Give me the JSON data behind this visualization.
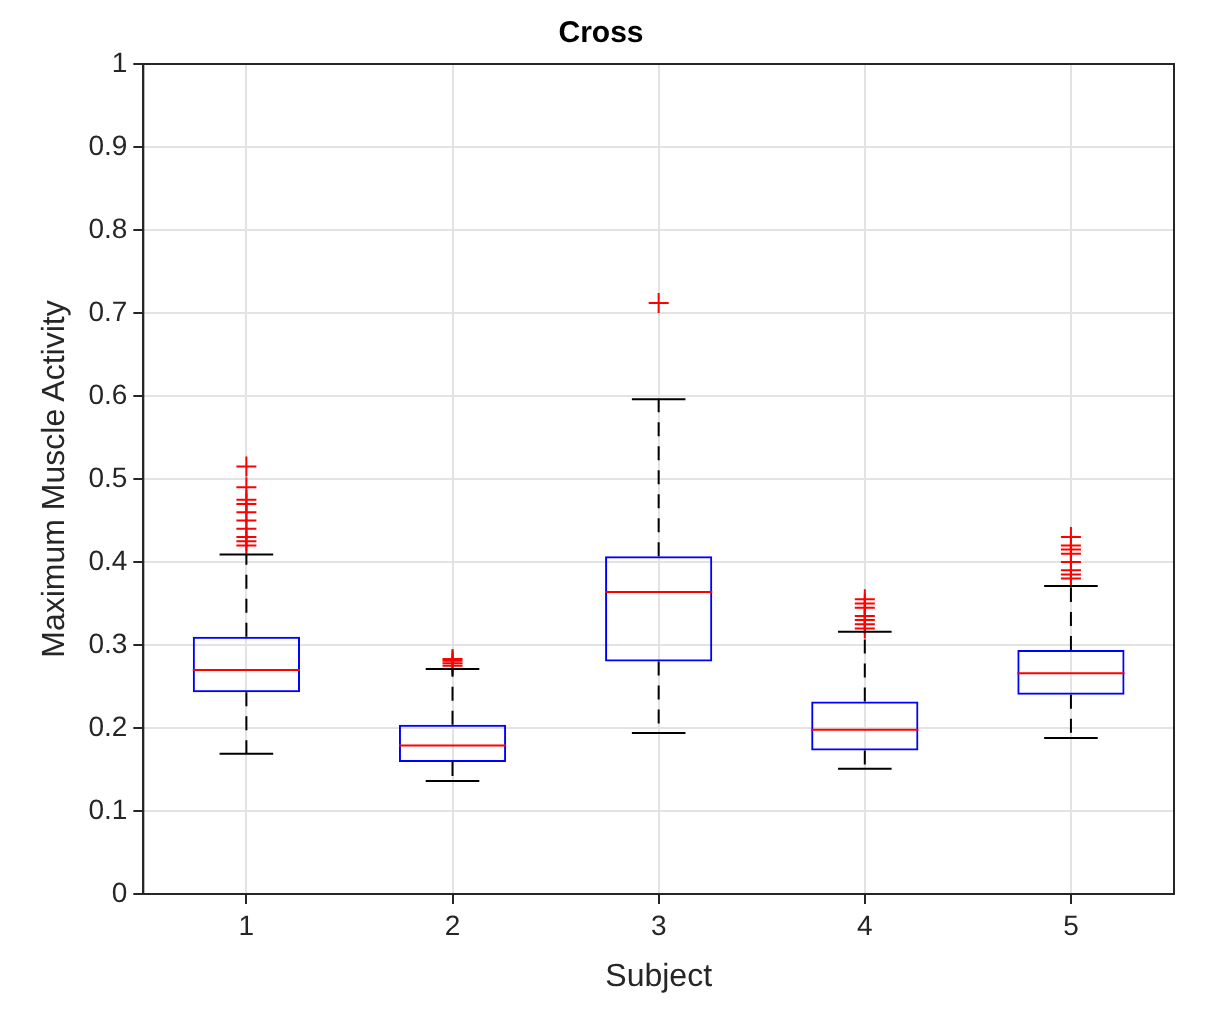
{
  "chart_data": {
    "type": "box",
    "title": "Cross",
    "xlabel": "Subject",
    "ylabel": "Maximum Muscle Activity",
    "categories": [
      "1",
      "2",
      "3",
      "4",
      "5"
    ],
    "boxes": [
      {
        "low": 0.169,
        "q1": 0.243,
        "median": 0.27,
        "q3": 0.31,
        "high": 0.409,
        "outliers": [
          0.42,
          0.425,
          0.43,
          0.44,
          0.45,
          0.46,
          0.47,
          0.475,
          0.49,
          0.515
        ]
      },
      {
        "low": 0.136,
        "q1": 0.159,
        "median": 0.179,
        "q3": 0.204,
        "high": 0.271,
        "outliers": [
          0.275,
          0.278,
          0.281,
          0.283
        ]
      },
      {
        "low": 0.194,
        "q1": 0.28,
        "median": 0.364,
        "q3": 0.407,
        "high": 0.596,
        "outliers": [
          0.712
        ]
      },
      {
        "low": 0.151,
        "q1": 0.173,
        "median": 0.198,
        "q3": 0.232,
        "high": 0.316,
        "outliers": [
          0.32,
          0.325,
          0.33,
          0.335,
          0.345,
          0.35,
          0.355
        ]
      },
      {
        "low": 0.188,
        "q1": 0.24,
        "median": 0.266,
        "q3": 0.294,
        "high": 0.371,
        "outliers": [
          0.38,
          0.385,
          0.39,
          0.4,
          0.41,
          0.415,
          0.42,
          0.43
        ]
      }
    ],
    "color": "#0000ff",
    "marker": "cross",
    "ylim": [
      0,
      1
    ],
    "yticks": [
      0,
      0.1,
      0.2,
      0.3,
      0.4,
      0.5,
      0.6,
      0.7,
      0.8,
      0.9,
      1
    ],
    "grid": true,
    "legend": false
  }
}
